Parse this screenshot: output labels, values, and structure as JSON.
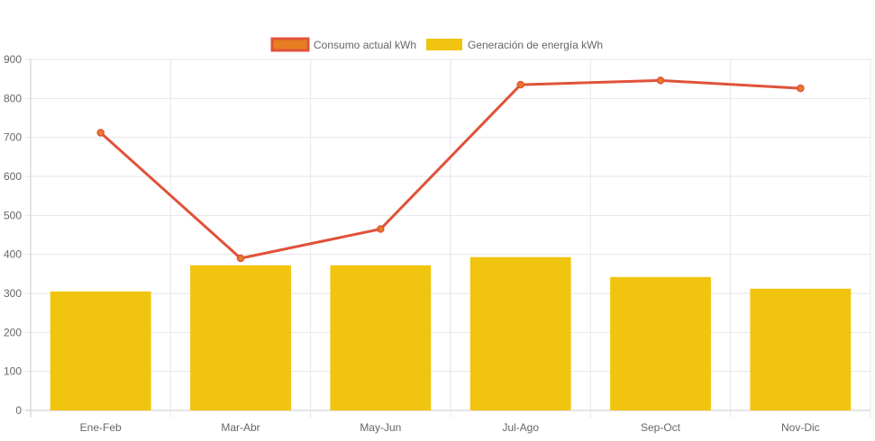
{
  "chart_data": {
    "type": "bar",
    "categories": [
      "Ene-Feb",
      "Mar-Abr",
      "May-Jun",
      "Jul-Ago",
      "Sep-Oct",
      "Nov-Dic"
    ],
    "series": [
      {
        "name": "Consumo actual kWh",
        "type": "line",
        "color": "#e0523a",
        "point_color": "#e67e22",
        "values": [
          712,
          390,
          465,
          835,
          846,
          826
        ]
      },
      {
        "name": "Generación de energía kWh",
        "type": "bar",
        "color": "#f1c40f",
        "values": [
          305,
          372,
          372,
          393,
          342,
          312
        ]
      }
    ],
    "ylim": [
      0,
      900
    ],
    "yticks": [
      "0",
      "100",
      "200",
      "300",
      "400",
      "500",
      "600",
      "700",
      "800",
      "900"
    ],
    "grid": true,
    "legend_position": "top"
  }
}
